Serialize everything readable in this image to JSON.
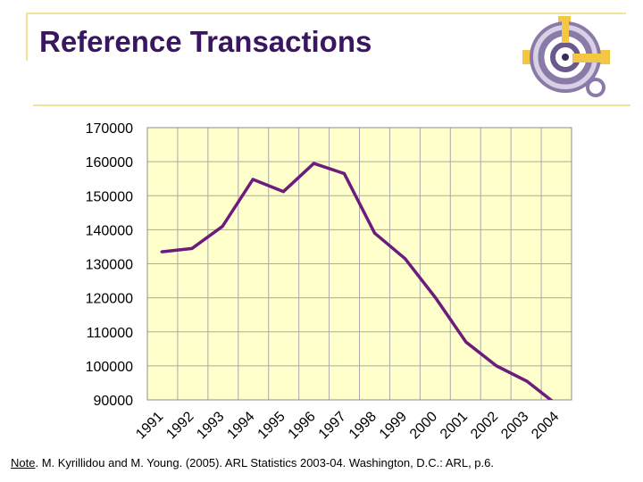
{
  "slide": {
    "title": "Reference Transactions",
    "note_label": "Note",
    "note_text": ". M. Kyrillidou and M. Young. (2005). ARL Statistics 2003-04. Washington, D.C.: ARL, p.6."
  },
  "logo": {
    "icon": "target-crosshair-logo-icon",
    "colors": [
      "#f3c744",
      "#8a7aa8",
      "#4b3a6a"
    ]
  },
  "colors": {
    "title": "#3b1660",
    "line": "#6c1c7c",
    "plot_bg": "#ffffcc",
    "grid": "#aaaaaa",
    "accent_rule": "#f1e49a"
  },
  "chart_data": {
    "type": "line",
    "title": "",
    "xlabel": "",
    "ylabel": "",
    "categories": [
      "1991",
      "1992",
      "1993",
      "1994",
      "1995",
      "1996",
      "1997",
      "1998",
      "1999",
      "2000",
      "2001",
      "2002",
      "2003",
      "2004"
    ],
    "series": [
      {
        "name": "Reference Transactions",
        "values": [
          133500,
          134500,
          141000,
          154800,
          151200,
          159500,
          156500,
          139000,
          131500,
          120000,
          107000,
          100000,
          95500,
          88500
        ]
      }
    ],
    "yticks": [
      90000,
      100000,
      110000,
      120000,
      130000,
      140000,
      150000,
      160000,
      170000
    ],
    "ylim": [
      90000,
      170000
    ],
    "grid": true,
    "legend": "none"
  }
}
